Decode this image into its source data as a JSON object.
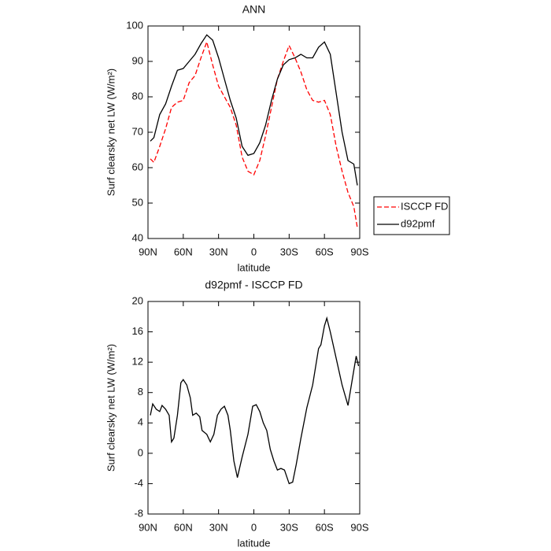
{
  "chart_data": [
    {
      "type": "line",
      "title": "ANN",
      "x_label": "latitude",
      "y_label": "Surf clearsky net LW (W/m²)",
      "x": [
        88,
        85,
        80,
        75,
        70,
        65,
        60,
        55,
        50,
        45,
        40,
        35,
        30,
        25,
        20,
        15,
        10,
        5,
        0,
        -5,
        -10,
        -15,
        -20,
        -25,
        -30,
        -35,
        -40,
        -45,
        -50,
        -55,
        -60,
        -65,
        -70,
        -75,
        -80,
        -85,
        -88
      ],
      "series": [
        {
          "name": "ISCCP FD",
          "color": "#ff0000",
          "style": "dashed",
          "values": [
            62.5,
            61.5,
            66,
            71,
            77,
            78.5,
            79,
            84,
            86,
            91,
            95.5,
            89,
            83,
            80,
            77,
            72,
            63,
            59,
            58,
            62,
            69,
            77,
            85,
            90,
            94.5,
            91,
            87,
            82,
            79,
            78.5,
            79,
            75,
            66,
            59,
            53,
            49,
            43
          ]
        },
        {
          "name": "d92pmf",
          "color": "#000000",
          "style": "solid",
          "values": [
            67.5,
            68.5,
            75,
            78,
            83,
            87.5,
            88,
            90,
            92,
            95,
            97.5,
            96,
            91,
            85,
            79,
            74,
            66,
            63.5,
            64,
            67,
            72,
            79,
            85,
            89,
            90.5,
            91,
            92,
            91,
            91,
            94,
            95.5,
            92,
            81,
            70,
            62,
            61,
            55
          ]
        }
      ],
      "xlim": [
        90,
        -90
      ],
      "xticks": [
        {
          "value": 90,
          "label": "90N"
        },
        {
          "value": 60,
          "label": "60N"
        },
        {
          "value": 30,
          "label": "30N"
        },
        0,
        {
          "value": -30,
          "label": "30S"
        },
        {
          "value": -60,
          "label": "60S"
        },
        {
          "value": -90,
          "label": "90S"
        }
      ],
      "ylim": [
        40,
        100
      ],
      "yticks": [
        40,
        50,
        60,
        70,
        80,
        90,
        100
      ],
      "legend": "right"
    },
    {
      "type": "line",
      "title": "d92pmf - ISCCP FD",
      "x_label": "latitude",
      "y_label": "Surf clearsky net LW (W/m²)",
      "x": [
        88,
        86,
        83,
        80,
        78,
        75,
        72,
        70,
        68,
        65,
        62,
        60,
        57,
        54,
        52,
        49,
        46,
        44,
        40,
        37,
        34,
        31,
        28,
        25,
        22,
        20,
        17,
        14,
        10,
        5,
        1,
        -2,
        -5,
        -8,
        -11,
        -14,
        -17,
        -20,
        -23,
        -26,
        -30,
        -33,
        -36,
        -40,
        -45,
        -50,
        -55,
        -57,
        -60,
        -62,
        -65,
        -70,
        -75,
        -80,
        -84,
        -87,
        -89
      ],
      "values": [
        5,
        6.5,
        5.8,
        5.5,
        6.3,
        5.8,
        5,
        1.5,
        2,
        5,
        9.3,
        9.7,
        9,
        7.3,
        5,
        5.3,
        4.8,
        3,
        2.5,
        1.5,
        2.5,
        5,
        5.8,
        6.2,
        5,
        3,
        -1,
        -3.2,
        -0.5,
        2.5,
        6.2,
        6.4,
        5.5,
        4,
        3,
        0.5,
        -1,
        -2.2,
        -2,
        -2.2,
        -4,
        -3.8,
        -1.5,
        2,
        6,
        9,
        13.8,
        14.3,
        16.8,
        17.8,
        16,
        12.5,
        9,
        6.3,
        10,
        12.8,
        11.5
      ],
      "color": "#000000",
      "xlim": [
        90,
        -90
      ],
      "xticks": [
        {
          "value": 90,
          "label": "90N"
        },
        {
          "value": 60,
          "label": "60N"
        },
        {
          "value": 30,
          "label": "30N"
        },
        0,
        {
          "value": -30,
          "label": "30S"
        },
        {
          "value": -60,
          "label": "60S"
        },
        {
          "value": -90,
          "label": "90S"
        }
      ],
      "ylim": [
        -8,
        20
      ],
      "yticks": [
        -8,
        -4,
        0,
        4,
        8,
        12,
        16,
        20
      ]
    }
  ]
}
